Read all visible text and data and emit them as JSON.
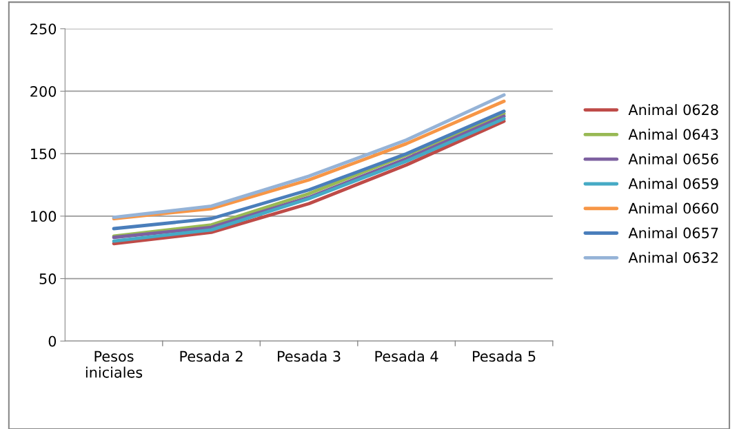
{
  "chart_data": {
    "type": "line",
    "categories": [
      "Pesos\niniciales",
      "Pesada 2",
      "Pesada 3",
      "Pesada 4",
      "Pesada 5"
    ],
    "series": [
      {
        "name": "Animal 0628",
        "color": "#be4b48",
        "values": [
          78,
          87,
          110,
          141,
          176
        ]
      },
      {
        "name": "Animal 0643",
        "color": "#98b954",
        "values": [
          84,
          93,
          118,
          149,
          182
        ]
      },
      {
        "name": "Animal 0656",
        "color": "#7d60a0",
        "values": [
          83,
          91,
          115,
          146,
          180
        ]
      },
      {
        "name": "Animal 0659",
        "color": "#46aac5",
        "values": [
          80,
          89,
          114,
          144,
          178
        ]
      },
      {
        "name": "Animal 0660",
        "color": "#f79646",
        "values": [
          98,
          106,
          129,
          158,
          192
        ]
      },
      {
        "name": "Animal 0657",
        "color": "#4a7ebb",
        "values": [
          90,
          98,
          121,
          150,
          184
        ]
      },
      {
        "name": "Animal 0632",
        "color": "#95b3d7",
        "values": [
          99,
          108,
          132,
          161,
          197
        ]
      }
    ],
    "ylim": [
      0,
      250
    ],
    "yticks": [
      0,
      50,
      100,
      150,
      200,
      250
    ],
    "grid": "y",
    "legend": "right",
    "marker": "none",
    "line_style": "solid"
  }
}
